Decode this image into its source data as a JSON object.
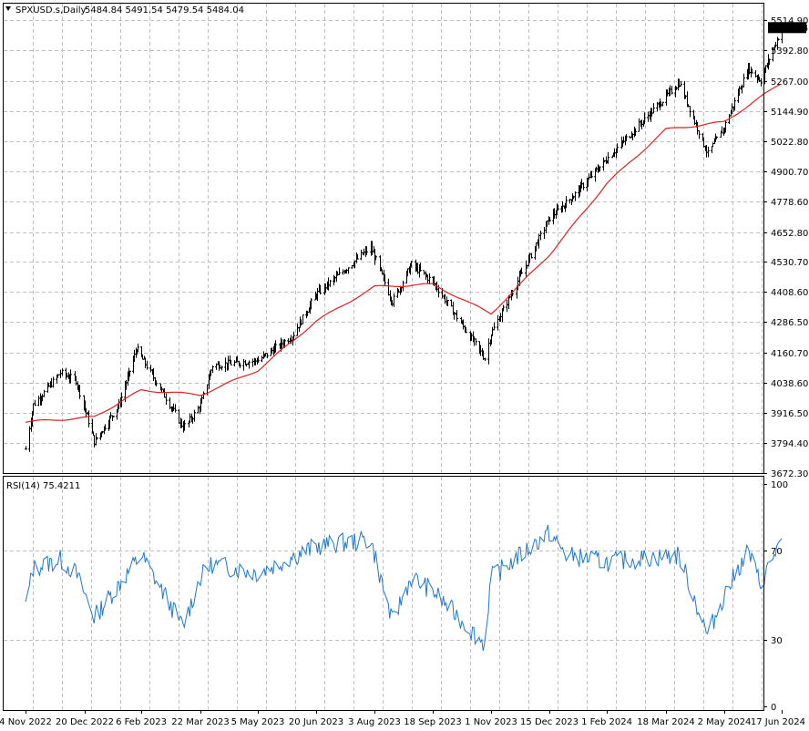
{
  "header": {
    "symbol": "SPXUSD.s,Daily",
    "ohlc": "5484.84 5491.54 5479.54 5484.04"
  },
  "rsi_label": "RSI(14) 75.4211",
  "last_price_label": "5484.04",
  "colors": {
    "bars": "#000000",
    "moving_average": "#e02020",
    "rsi": "#1e78d2",
    "grid": "#c0c0c0",
    "price_tag_bg": "#000000",
    "price_tag_text": "#ffffff"
  },
  "chart_data": [
    {
      "type": "ohlc",
      "title": "SPXUSD.s,Daily",
      "ylim": [
        3672.3,
        5514.9
      ],
      "y_ticks": [
        "5514.90",
        "5392.80",
        "5267.00",
        "5144.90",
        "5022.80",
        "4900.70",
        "4778.60",
        "4652.80",
        "4530.70",
        "4408.60",
        "4286.50",
        "4160.70",
        "4038.60",
        "3916.50",
        "3794.40",
        "3672.30"
      ],
      "x_ticks": [
        "4 Nov 2022",
        "20 Dec 2022",
        "6 Feb 2023",
        "22 Mar 2023",
        "5 May 2023",
        "20 Jun 2023",
        "3 Aug 2023",
        "18 Sep 2023",
        "1 Nov 2023",
        "15 Dec 2023",
        "1 Feb 2024",
        "18 Mar 2024",
        "2 May 2024",
        "17 Jun 2024"
      ],
      "last_close": 5484.04,
      "grid": true,
      "close_path": [
        [
          "4 Nov 2022",
          3770
        ],
        [
          "10 Nov 2022",
          3950
        ],
        [
          "1 Dec 2022",
          4080
        ],
        [
          "13 Dec 2022",
          4050
        ],
        [
          "28 Dec 2022",
          3800
        ],
        [
          "18 Jan 2023",
          3950
        ],
        [
          "2 Feb 2023",
          4180
        ],
        [
          "9 Mar 2023",
          3860
        ],
        [
          "13 Mar 2023",
          3880
        ],
        [
          "22 Mar 2023",
          3950
        ],
        [
          "31 Mar 2023",
          4110
        ],
        [
          "5 May 2023",
          4130
        ],
        [
          "1 Jun 2023",
          4230
        ],
        [
          "20 Jun 2023",
          4400
        ],
        [
          "31 Jul 2023",
          4590
        ],
        [
          "17 Aug 2023",
          4370
        ],
        [
          "1 Sep 2023",
          4520
        ],
        [
          "18 Sep 2023",
          4450
        ],
        [
          "27 Oct 2023",
          4140
        ],
        [
          "1 Nov 2023",
          4240
        ],
        [
          "15 Dec 2023",
          4710
        ],
        [
          "29 Dec 2023",
          4770
        ],
        [
          "1 Feb 2024",
          4950
        ],
        [
          "28 Mar 2024",
          5260
        ],
        [
          "19 Apr 2024",
          4970
        ],
        [
          "2 May 2024",
          5080
        ],
        [
          "21 May 2024",
          5320
        ],
        [
          "31 May 2024",
          5270
        ],
        [
          "17 Jun 2024",
          5484
        ]
      ],
      "moving_average_path": [
        [
          "4 Nov 2022",
          3880
        ],
        [
          "28 Dec 2022",
          3900
        ],
        [
          "6 Feb 2023",
          4010
        ],
        [
          "22 Mar 2023",
          3990
        ],
        [
          "5 May 2023",
          4090
        ],
        [
          "20 Jun 2023",
          4290
        ],
        [
          "3 Aug 2023",
          4430
        ],
        [
          "18 Sep 2023",
          4440
        ],
        [
          "1 Nov 2023",
          4320
        ],
        [
          "15 Dec 2023",
          4560
        ],
        [
          "1 Feb 2024",
          4850
        ],
        [
          "18 Mar 2024",
          5070
        ],
        [
          "2 May 2024",
          5100
        ],
        [
          "17 Jun 2024",
          5260
        ]
      ]
    },
    {
      "type": "line",
      "title": "RSI(14) 75.4211",
      "ylim": [
        0,
        100
      ],
      "y_ticks": [
        "100",
        "70",
        "30",
        "0"
      ],
      "last_value": 75.4211,
      "path": [
        [
          "4 Nov 2022",
          45
        ],
        [
          "10 Nov 2022",
          62
        ],
        [
          "1 Dec 2022",
          66
        ],
        [
          "13 Dec 2022",
          60
        ],
        [
          "28 Dec 2022",
          40
        ],
        [
          "6 Feb 2023",
          68
        ],
        [
          "9 Mar 2023",
          36
        ],
        [
          "22 Mar 2023",
          58
        ],
        [
          "31 Mar 2023",
          64
        ],
        [
          "5 May 2023",
          60
        ],
        [
          "20 Jun 2023",
          72
        ],
        [
          "31 Jul 2023",
          75
        ],
        [
          "17 Aug 2023",
          38
        ],
        [
          "1 Sep 2023",
          58
        ],
        [
          "18 Sep 2023",
          52
        ],
        [
          "27 Oct 2023",
          28
        ],
        [
          "1 Nov 2023",
          58
        ],
        [
          "15 Dec 2023",
          78
        ],
        [
          "29 Dec 2023",
          68
        ],
        [
          "1 Feb 2024",
          65
        ],
        [
          "28 Mar 2024",
          68
        ],
        [
          "19 Apr 2024",
          32
        ],
        [
          "2 May 2024",
          50
        ],
        [
          "21 May 2024",
          70
        ],
        [
          "31 May 2024",
          55
        ],
        [
          "17 Jun 2024",
          75.4
        ]
      ]
    }
  ]
}
